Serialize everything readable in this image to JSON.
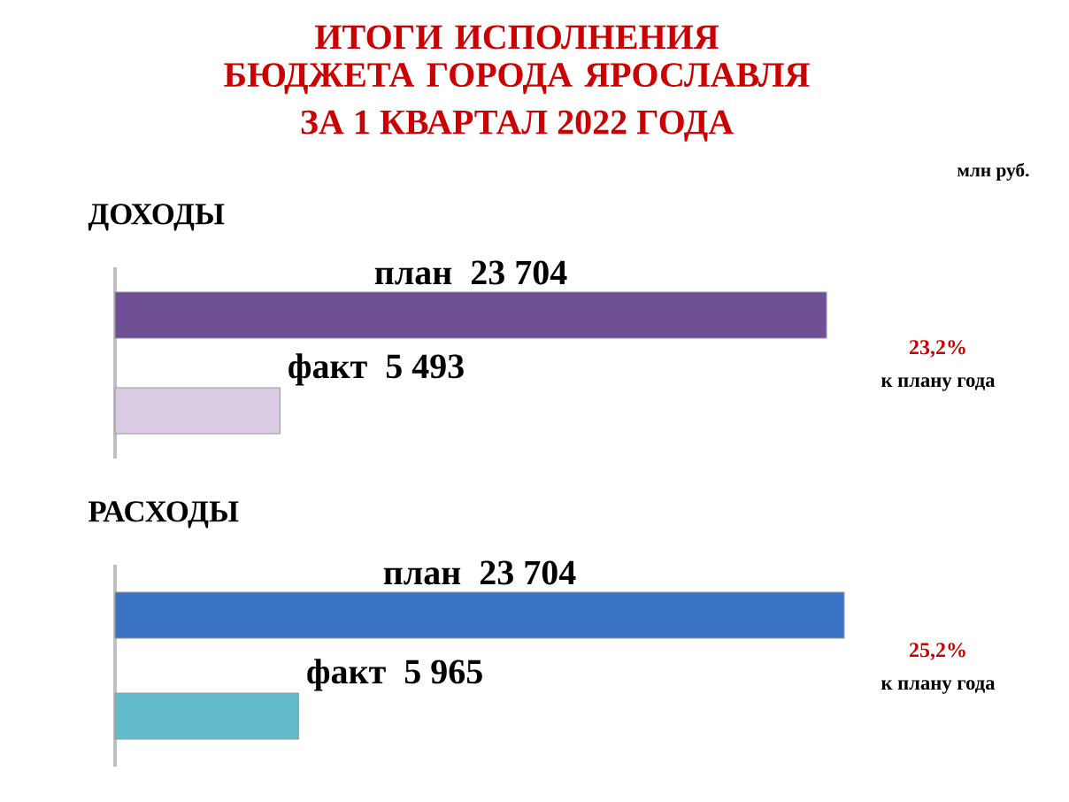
{
  "chart_data": [
    {
      "type": "other",
      "title": "ИТОГИ ИСПОЛНЕНИЯ БЮДЖЕТА ГОРОДА ЯРОСЛАВЛЯ",
      "subtitle": "ЗА 1 КВАРТАЛ 2022 ГОДА",
      "annotations": [
        "млн руб."
      ]
    },
    {
      "type": "bar",
      "orientation": "horizontal",
      "title": "ДОХОДЫ",
      "categories": [
        "план",
        "факт"
      ],
      "values": [
        23704,
        5493
      ],
      "value_labels": [
        "23 704",
        "5 493"
      ],
      "colors": [
        "#6f4f96",
        "#d9cbe3"
      ],
      "annotations": [
        "23,2%",
        "к плану года"
      ]
    },
    {
      "type": "bar",
      "orientation": "horizontal",
      "title": "РАСХОДЫ",
      "categories": [
        "план",
        "факт"
      ],
      "values": [
        23704,
        5965
      ],
      "value_labels": [
        "23 704",
        "5 965"
      ],
      "colors": [
        "#3b73c4",
        "#62bccb"
      ],
      "annotations": [
        "25,2%",
        "к плану года"
      ]
    }
  ]
}
